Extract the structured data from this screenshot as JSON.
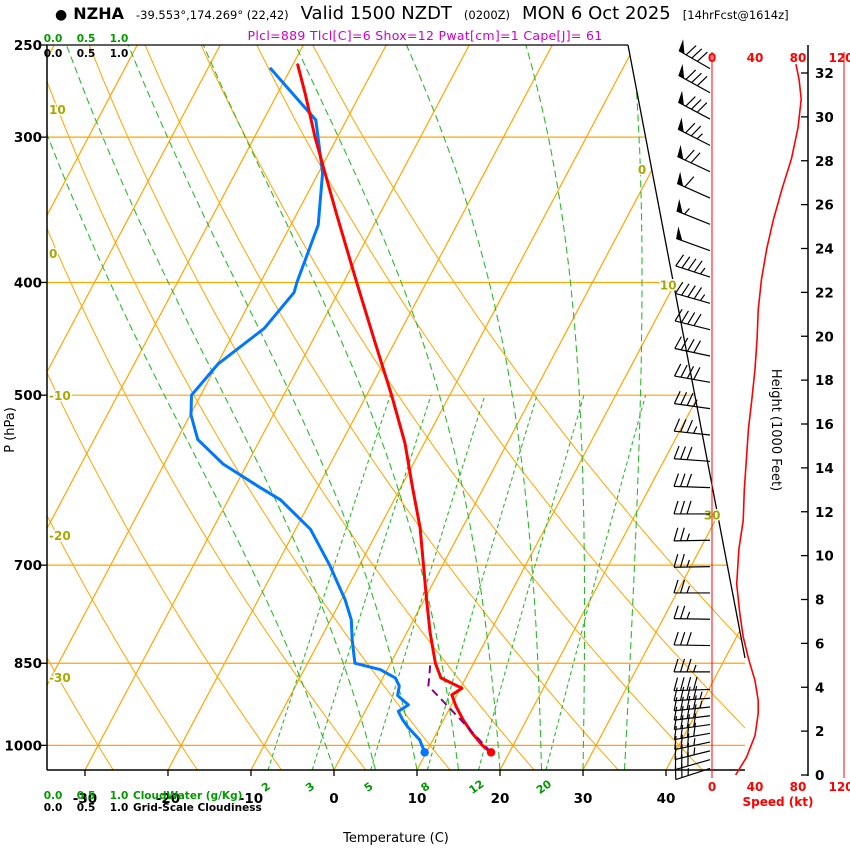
{
  "header": {
    "bullet": "●",
    "station": "NZHA",
    "coords": "-39.553°,174.269° (22,42)",
    "valid": "Valid 1500 NZDT",
    "zulu": "(0200Z)",
    "date": "MON 6 Oct 2025",
    "fcst_tag": "[14hrFcst@1614z]",
    "params_line": "Plcl=889 Tlcl[C]=6 Shox=12 Pwat[cm]=1 Cape[J]= 61"
  },
  "axis_labels": {
    "pressure": "P (hPa)",
    "temperature": "Temperature (C)",
    "height": "Height (1000 Feet)",
    "speed": "Speed (kt)",
    "cloudwater": "CloudWater (g/Kg)",
    "cloudiness": "Grid-Scale Cloudiness"
  },
  "colors": {
    "orange": "#ffa500",
    "green_line": "#2eb82e",
    "green_label": "#009900",
    "olive": "#a8a800",
    "red": "#ff0000",
    "blue": "#0077ff",
    "purple": "#880088",
    "magenta": "#cc00cc"
  },
  "chart_data": {
    "type": "skewt",
    "station": "NZHA",
    "lat": -39.553,
    "lon": 174.269,
    "grid_point": "(22,42)",
    "valid": "1500 NZDT (0200Z) MON 6 Oct 2025",
    "forecast": "14hrFcst@1614z",
    "indices": {
      "plcl_hpa": 889,
      "tlcl_c": 6,
      "showalter_index": 12,
      "pwat_cm": 1,
      "cape_j": 61
    },
    "pressure_axis": {
      "ticks": [
        250,
        300,
        400,
        500,
        700,
        850,
        1000
      ],
      "range": [
        250,
        1050
      ],
      "scale": "log"
    },
    "temp_axis": {
      "ticks": [
        -30,
        -20,
        -10,
        0,
        10,
        20,
        30,
        40
      ],
      "unit": "C",
      "skewed": true
    },
    "height_axis": {
      "ticks": [
        0,
        2,
        4,
        6,
        8,
        10,
        12,
        14,
        16,
        18,
        20,
        22,
        24,
        26,
        28,
        30,
        32
      ],
      "unit": "1000 ft"
    },
    "speed_axis": {
      "ticks": [
        0,
        40,
        80,
        120
      ],
      "unit": "kt"
    },
    "scale_row": [
      "0.0",
      "0.5",
      "1.0"
    ],
    "isotherms_c": {
      "min": -80,
      "max": 40,
      "step": 10
    },
    "dry_adiabats_c": {
      "min": -40,
      "max": 60,
      "step": 10
    },
    "isotherm_labels_on_diagonal": [
      0,
      10,
      30
    ],
    "dry_adiabat_labels": [
      10,
      0,
      -10,
      -20,
      -30
    ],
    "mixing_ratio_g_kg": [
      2,
      3,
      5,
      8,
      12,
      20
    ],
    "moist_adiabats_c": [
      0,
      5,
      10,
      15,
      20,
      25,
      30,
      35
    ],
    "surface": {
      "pressure": 1014,
      "temp_c": 17.8,
      "dewpoint_c": 9.8
    },
    "temperature_profile": [
      [
        1014,
        17.8
      ],
      [
        1000,
        16.3
      ],
      [
        975,
        14.2
      ],
      [
        950,
        12.3
      ],
      [
        925,
        10.6
      ],
      [
        905,
        9.4
      ],
      [
        893,
        10.2
      ],
      [
        875,
        7.0
      ],
      [
        850,
        5.4
      ],
      [
        800,
        2.8
      ],
      [
        750,
        0.3
      ],
      [
        700,
        -2.3
      ],
      [
        650,
        -5.1
      ],
      [
        600,
        -8.6
      ],
      [
        550,
        -12.3
      ],
      [
        500,
        -17.0
      ],
      [
        450,
        -22.4
      ],
      [
        400,
        -28.4
      ],
      [
        350,
        -35.1
      ],
      [
        300,
        -42.7
      ],
      [
        275,
        -46.7
      ],
      [
        260,
        -49.4
      ]
    ],
    "dewpoint_profile": [
      [
        1014,
        9.8
      ],
      [
        989,
        8.4
      ],
      [
        965,
        6.2
      ],
      [
        951,
        5.1
      ],
      [
        935,
        4.0
      ],
      [
        923,
        4.8
      ],
      [
        906,
        2.9
      ],
      [
        889,
        2.5
      ],
      [
        875,
        1.5
      ],
      [
        861,
        -0.8
      ],
      [
        850,
        -4.3
      ],
      [
        812,
        -6.1
      ],
      [
        780,
        -7.5
      ],
      [
        750,
        -9.5
      ],
      [
        700,
        -13.6
      ],
      [
        652,
        -18.2
      ],
      [
        615,
        -23.7
      ],
      [
        600,
        -27.0
      ],
      [
        573,
        -32.9
      ],
      [
        546,
        -37.5
      ],
      [
        520,
        -39.9
      ],
      [
        500,
        -41.1
      ],
      [
        470,
        -39.9
      ],
      [
        438,
        -36.6
      ],
      [
        408,
        -35.3
      ],
      [
        400,
        -35.6
      ],
      [
        357,
        -36.7
      ],
      [
        322,
        -39.5
      ],
      [
        290,
        -43.7
      ],
      [
        262,
        -52.4
      ]
    ],
    "parcel_path": [
      [
        1014,
        17.8
      ],
      [
        950,
        12.0
      ],
      [
        889,
        6.0
      ],
      [
        850,
        4.8
      ]
    ],
    "wind_barbs": [
      [
        0.3,
        25,
        252
      ],
      [
        0.7,
        30,
        254
      ],
      [
        1.1,
        33,
        256
      ],
      [
        1.5,
        36,
        258
      ],
      [
        1.9,
        38,
        260
      ],
      [
        2.3,
        40,
        262
      ],
      [
        2.7,
        42,
        263
      ],
      [
        3.1,
        43,
        264
      ],
      [
        3.5,
        43,
        266
      ],
      [
        3.9,
        42,
        268
      ],
      [
        4.7,
        36,
        270
      ],
      [
        5.9,
        30,
        271
      ],
      [
        7.1,
        26,
        271
      ],
      [
        8.3,
        23,
        270
      ],
      [
        9.5,
        24,
        269
      ],
      [
        10.7,
        26,
        269
      ],
      [
        11.9,
        29,
        270
      ],
      [
        13.1,
        30,
        272
      ],
      [
        14.3,
        32,
        274
      ],
      [
        15.5,
        34,
        276
      ],
      [
        16.7,
        36,
        278
      ],
      [
        17.9,
        38,
        280
      ],
      [
        19.1,
        41,
        282
      ],
      [
        20.3,
        42,
        284
      ],
      [
        21.5,
        44,
        286
      ],
      [
        22.7,
        46,
        288
      ],
      [
        23.9,
        50,
        290
      ],
      [
        25.1,
        56,
        292
      ],
      [
        26.3,
        62,
        294
      ],
      [
        27.5,
        68,
        295
      ],
      [
        28.7,
        73,
        297
      ],
      [
        29.9,
        79,
        298
      ],
      [
        31.1,
        82,
        299
      ],
      [
        32.2,
        80,
        300
      ]
    ],
    "wind_speed_profile": [
      [
        0,
        22
      ],
      [
        0.8,
        32
      ],
      [
        1.8,
        40
      ],
      [
        2.8,
        43
      ],
      [
        3.4,
        43
      ],
      [
        4.3,
        40
      ],
      [
        5.3,
        34
      ],
      [
        6.3,
        29
      ],
      [
        7.3,
        26
      ],
      [
        8.7,
        23
      ],
      [
        10.3,
        25
      ],
      [
        11.6,
        29
      ],
      [
        13.0,
        30
      ],
      [
        14.4,
        32
      ],
      [
        15.8,
        34
      ],
      [
        17.1,
        37
      ],
      [
        18.5,
        40
      ],
      [
        19.9,
        42
      ],
      [
        21.2,
        43
      ],
      [
        22.6,
        46
      ],
      [
        24.0,
        51
      ],
      [
        25.3,
        57
      ],
      [
        26.7,
        65
      ],
      [
        28.1,
        74
      ],
      [
        29.5,
        80
      ],
      [
        30.8,
        83
      ],
      [
        31.7,
        81
      ],
      [
        32.4,
        78
      ]
    ]
  }
}
